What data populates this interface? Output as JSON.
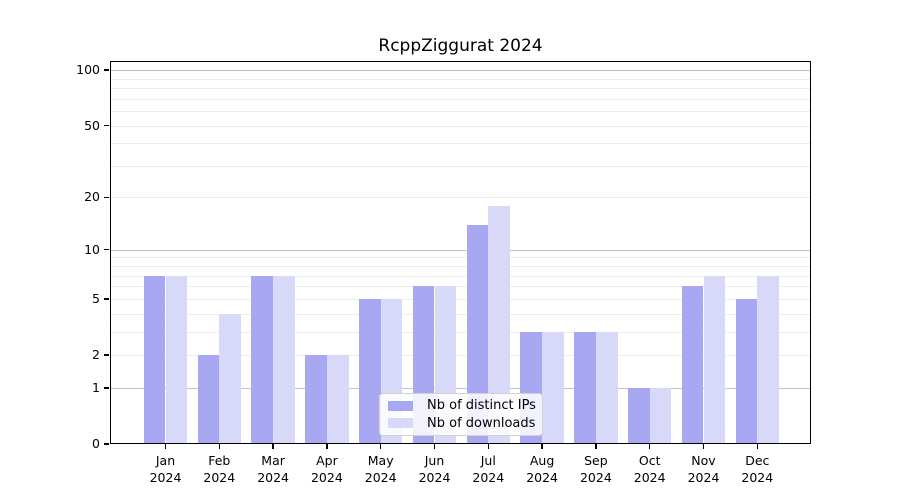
{
  "chart_data": {
    "type": "bar",
    "title": "RcppZiggurat 2024",
    "year_label": "2024",
    "categories": [
      "Jan",
      "Feb",
      "Mar",
      "Apr",
      "May",
      "Jun",
      "Jul",
      "Aug",
      "Sep",
      "Oct",
      "Nov",
      "Dec"
    ],
    "series": [
      {
        "name": "Nb of distinct IPs",
        "color": "#a8a8f2",
        "values": [
          7,
          2,
          7,
          2,
          5,
          6,
          14,
          3,
          3,
          1,
          6,
          5
        ]
      },
      {
        "name": "Nb of downloads",
        "color": "#d8d8f9",
        "values": [
          7,
          4,
          7,
          2,
          5,
          6,
          18,
          3,
          3,
          1,
          7,
          7
        ]
      }
    ],
    "y_scale": "log1p",
    "y_ticks": [
      0,
      1,
      2,
      5,
      10,
      20,
      50,
      100
    ],
    "major_gridlines": [
      1,
      10,
      100
    ],
    "minor_gridlines": [
      2,
      3,
      4,
      5,
      6,
      7,
      8,
      9,
      20,
      30,
      40,
      50,
      60,
      70,
      80,
      90
    ],
    "ylim": [
      0,
      110
    ],
    "xlabel": "",
    "ylabel": "",
    "legend_position": "lower center",
    "colors": {
      "major_grid": "#c2c2c2",
      "minor_grid": "#ededed",
      "spine": "#000000",
      "background": "#ffffff"
    }
  }
}
